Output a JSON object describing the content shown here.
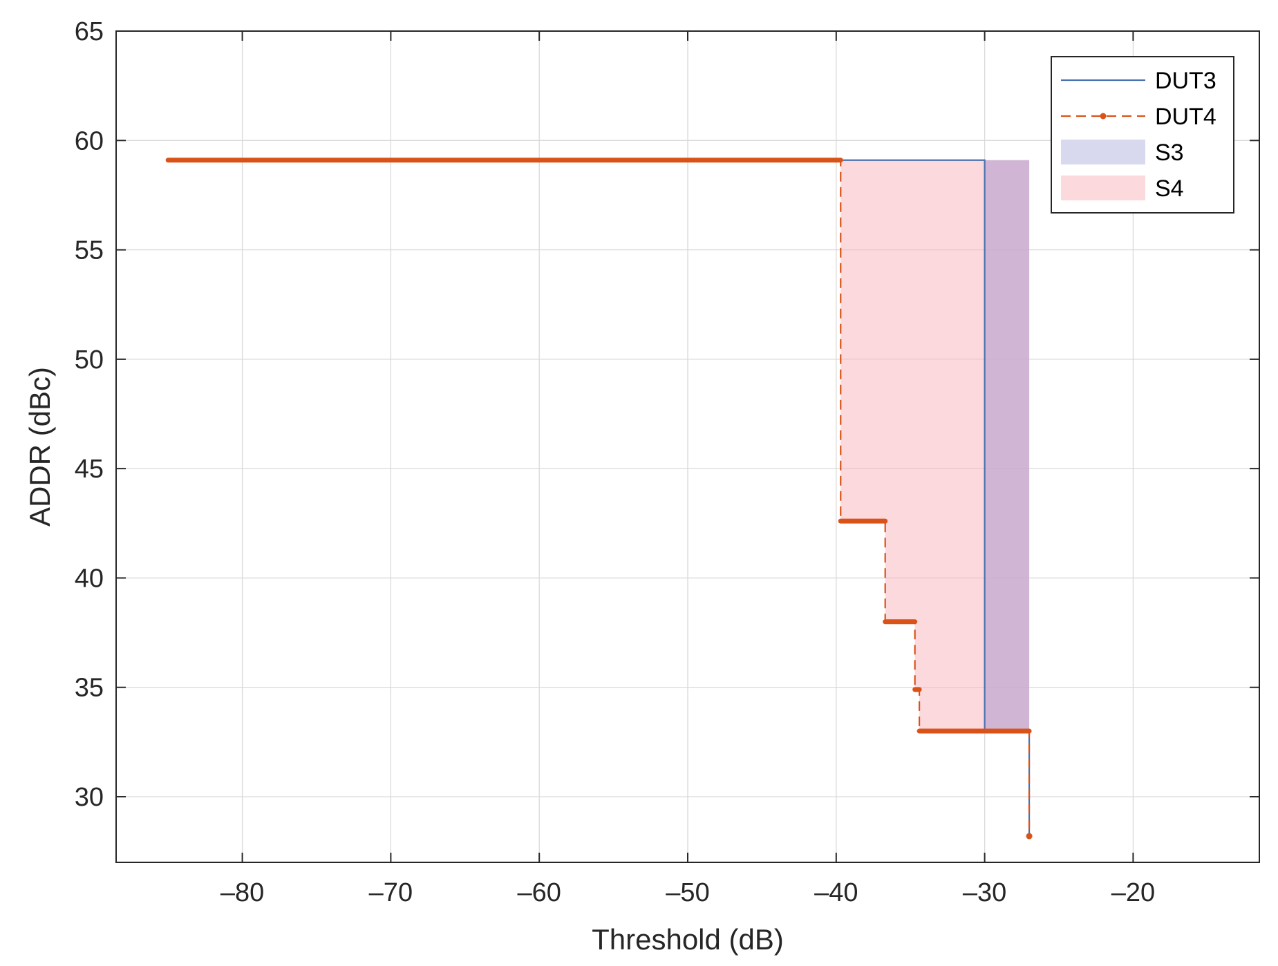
{
  "chart_data": {
    "type": "line",
    "title": "",
    "xlabel": "Threshold (dB)",
    "ylabel": "ADDR (dBc)",
    "xlim": [
      -88.5,
      -11.5
    ],
    "ylim": [
      27,
      65
    ],
    "xticks": [
      -80,
      -70,
      -60,
      -50,
      -40,
      -30,
      -20
    ],
    "xtick_labels": [
      "–80",
      "–70",
      "–60",
      "–50",
      "–40",
      "–30",
      "–20"
    ],
    "yticks": [
      30,
      35,
      40,
      45,
      50,
      55,
      60,
      65
    ],
    "ytick_labels": [
      "30",
      "35",
      "40",
      "45",
      "50",
      "55",
      "60",
      "65"
    ],
    "grid": true,
    "legend_position": "top-right",
    "series": [
      {
        "name": "DUT3",
        "style": "solid",
        "color": "#4a72b0",
        "x": [
          -85,
          -30,
          -30,
          -27,
          -27
        ],
        "y": [
          59.1,
          59.1,
          33,
          33,
          28.2
        ]
      },
      {
        "name": "DUT4",
        "style": "dashed-dots",
        "color": "#d95319",
        "x": [
          -85,
          -39.7,
          -39.7,
          -36.7,
          -36.7,
          -34.7,
          -34.7,
          -34.4,
          -34.4,
          -27,
          -27
        ],
        "y": [
          59.1,
          59.1,
          42.6,
          42.6,
          38,
          38,
          34.9,
          34.9,
          33,
          33,
          28.2
        ]
      }
    ],
    "areas": [
      {
        "name": "S3",
        "color": "#b2b2dd",
        "opacity": 0.5,
        "x": [
          -30,
          -27
        ],
        "y_top": 59.1,
        "y_bottom": 33
      },
      {
        "name": "S4",
        "color": "#f7b4bb",
        "opacity": 0.5,
        "x_top": [
          -39.7,
          -27
        ],
        "y_top": 59.1,
        "steps_bottom": [
          [
            -39.7,
            42.6
          ],
          [
            -36.7,
            38
          ],
          [
            -34.7,
            34.9
          ],
          [
            -34.4,
            33
          ],
          [
            -27,
            33
          ]
        ]
      }
    ],
    "legend": [
      "DUT3",
      "DUT4",
      "S3",
      "S4"
    ]
  }
}
